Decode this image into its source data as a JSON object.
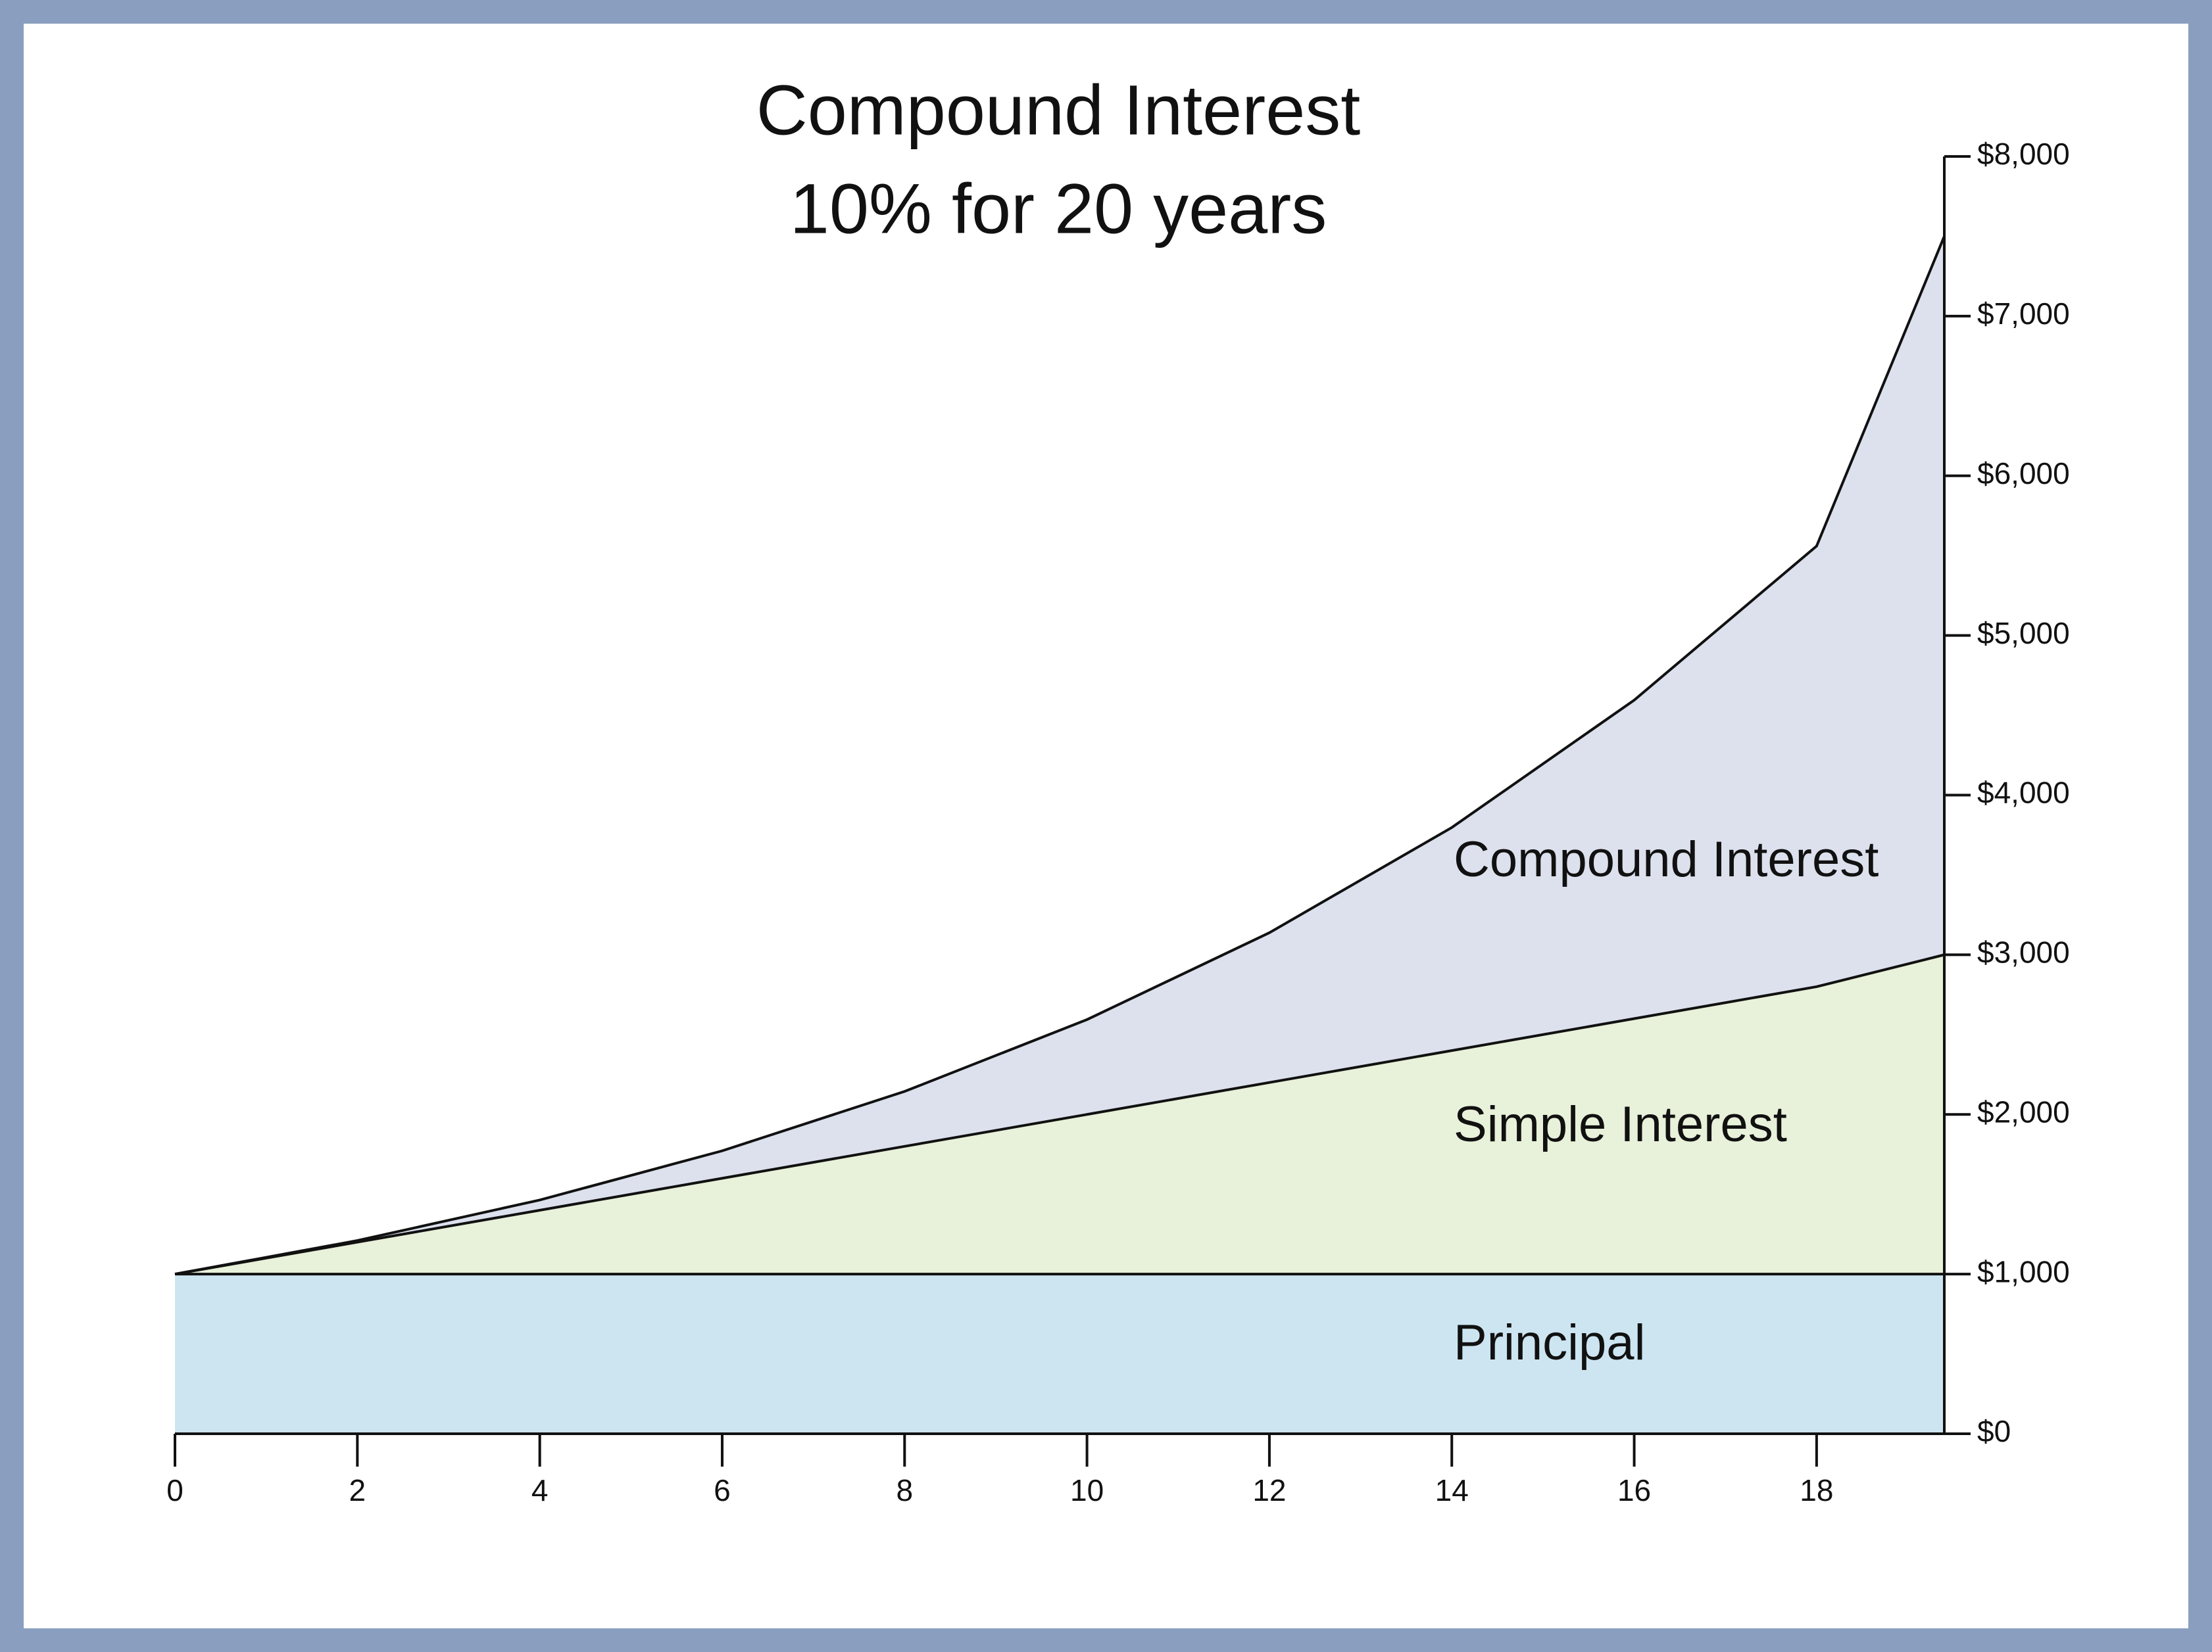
{
  "chart_data": {
    "type": "area",
    "title": "Compound Interest",
    "subtitle": "10% for 20 years",
    "x": [
      0,
      2,
      4,
      6,
      8,
      10,
      12,
      14,
      16,
      18,
      19.4
    ],
    "series": [
      {
        "name": "Principal",
        "color": "#c3e1ee",
        "values": [
          1000,
          1000,
          1000,
          1000,
          1000,
          1000,
          1000,
          1000,
          1000,
          1000,
          1000
        ]
      },
      {
        "name": "Simple Interest",
        "color": "#e4eed2",
        "values": [
          1000,
          1200,
          1400,
          1600,
          1800,
          2000,
          2200,
          2400,
          2600,
          2800,
          3000
        ]
      },
      {
        "name": "Compound Interest",
        "color": "#d6dcea",
        "values": [
          1000,
          1210,
          1464,
          1772,
          2144,
          2594,
          3138,
          3797,
          4595,
          5560,
          7500
        ]
      }
    ],
    "xlim": [
      0,
      19.4
    ],
    "xticks": [
      0,
      2,
      4,
      6,
      8,
      10,
      12,
      14,
      16,
      18
    ],
    "ylim": [
      0,
      8000
    ],
    "yticks": [
      {
        "value": 0,
        "label": "$0"
      },
      {
        "value": 1000,
        "label": "$1,000"
      },
      {
        "value": 2000,
        "label": "$2,000"
      },
      {
        "value": 3000,
        "label": "$3,000"
      },
      {
        "value": 4000,
        "label": "$4,000"
      },
      {
        "value": 5000,
        "label": "$5,000"
      },
      {
        "value": 6000,
        "label": "$6,000"
      },
      {
        "value": 7000,
        "label": "$7,000"
      },
      {
        "value": 8000,
        "label": "$8,000"
      }
    ]
  }
}
